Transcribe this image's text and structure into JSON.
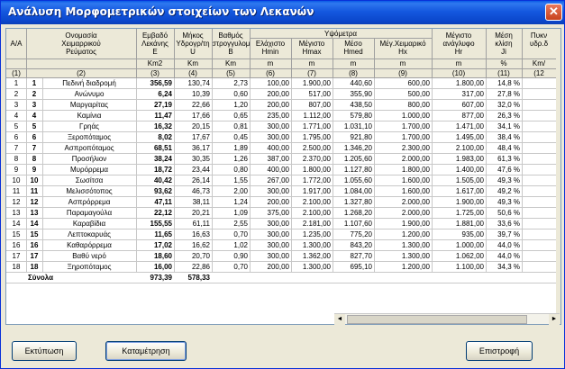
{
  "window": {
    "title": "Ανάλυση Μορφομετρικών στοιχείων των Λεκανών",
    "close_glyph": "✕"
  },
  "table": {
    "header": {
      "aa": "A/A",
      "name": [
        "Ονομασία",
        "Χειμαρρικού",
        "Ρεύματος"
      ],
      "area": [
        "Εμβαδό",
        "Λεκάνης",
        "E"
      ],
      "length": [
        "Μήκος",
        "Υδρογρ/τη",
        "U"
      ],
      "degree": [
        "Βαθμός",
        "στρογγυλομ",
        "B"
      ],
      "altitude_group": "Υψόμετρα",
      "hmin": [
        "Ελάχιστο",
        "Hmin"
      ],
      "hmax": [
        "Μέγιστο",
        "Hmax"
      ],
      "hmed": [
        "Μέσο",
        "Hmed"
      ],
      "hx": [
        "Μέγ.Χειμαρικό",
        "Hx"
      ],
      "hr": [
        "Μέγιστο",
        "ανάγλυφο",
        "Hr"
      ],
      "ji": [
        "Μέση",
        "κλίση",
        "Ji"
      ],
      "extra": [
        "Πυκν",
        "υδρ.δ"
      ],
      "units": [
        "",
        "",
        "Km2",
        "Km",
        "Km",
        "m",
        "m",
        "m",
        "m",
        "m",
        "%",
        "Km/"
      ],
      "numbers": [
        "(1)",
        "(2)",
        "(3)",
        "(4)",
        "(5)",
        "(6)",
        "(7)",
        "(8)",
        "(9)",
        "(10)",
        "(11)",
        "(12"
      ]
    },
    "rows": [
      [
        "1",
        "1",
        "Πεδινή διαδρομή",
        "356,59",
        "130,74",
        "2,73",
        "100,00",
        "1.900,00",
        "440,60",
        "600,00",
        "1.800,00",
        "14,8 %"
      ],
      [
        "2",
        "2",
        "Ανώνυμο",
        "6,24",
        "10,39",
        "0,60",
        "200,00",
        "517,00",
        "355,90",
        "500,00",
        "317,00",
        "27,8 %"
      ],
      [
        "3",
        "3",
        "Μαργαρίτας",
        "27,19",
        "22,66",
        "1,20",
        "200,00",
        "807,00",
        "438,50",
        "800,00",
        "607,00",
        "32,0 %"
      ],
      [
        "4",
        "4",
        "Καμίνια",
        "11,47",
        "17,66",
        "0,65",
        "235,00",
        "1.112,00",
        "579,80",
        "1.000,00",
        "877,00",
        "26,3 %"
      ],
      [
        "5",
        "5",
        "Γρηάς",
        "16,32",
        "20,15",
        "0,81",
        "300,00",
        "1.771,00",
        "1.031,10",
        "1.700,00",
        "1.471,00",
        "34,1 %"
      ],
      [
        "6",
        "6",
        "Ξεροπόταμος",
        "8,02",
        "17,67",
        "0,45",
        "300,00",
        "1.795,00",
        "921,80",
        "1.700,00",
        "1.495,00",
        "38,4 %"
      ],
      [
        "7",
        "7",
        "Ασπροπόταμος",
        "68,51",
        "36,17",
        "1,89",
        "400,00",
        "2.500,00",
        "1.346,20",
        "2.300,00",
        "2.100,00",
        "48,4 %"
      ],
      [
        "8",
        "8",
        "Προσήλιον",
        "38,24",
        "30,35",
        "1,26",
        "387,00",
        "2.370,00",
        "1.205,60",
        "2.000,00",
        "1.983,00",
        "61,3 %"
      ],
      [
        "9",
        "9",
        "Μυρόρρεμα",
        "18,72",
        "23,44",
        "0,80",
        "400,00",
        "1.800,00",
        "1.127,80",
        "1.800,00",
        "1.400,00",
        "47,6 %"
      ],
      [
        "10",
        "10",
        "Σωσίτσα",
        "40,42",
        "26,14",
        "1,55",
        "267,00",
        "1.772,00",
        "1.055,60",
        "1.600,00",
        "1.505,00",
        "49,3 %"
      ],
      [
        "11",
        "11",
        "Μελισσότοπος",
        "93,62",
        "46,73",
        "2,00",
        "300,00",
        "1.917,00",
        "1.084,00",
        "1.600,00",
        "1.617,00",
        "49,2 %"
      ],
      [
        "12",
        "12",
        "Ασπρόρρεμα",
        "47,11",
        "38,11",
        "1,24",
        "200,00",
        "2.100,00",
        "1.327,80",
        "2.000,00",
        "1.900,00",
        "49,3 %"
      ],
      [
        "13",
        "13",
        "Παραμαγούλα",
        "22,12",
        "20,21",
        "1,09",
        "375,00",
        "2.100,00",
        "1.268,20",
        "2.000,00",
        "1.725,00",
        "50,6 %"
      ],
      [
        "14",
        "14",
        "Καραβίδια",
        "155,55",
        "61,11",
        "2,55",
        "300,00",
        "2.181,00",
        "1.107,60",
        "1.900,00",
        "1.881,00",
        "33,6 %"
      ],
      [
        "15",
        "15",
        "Λεπτοκαρυάς",
        "11,65",
        "16,63",
        "0,70",
        "300,00",
        "1.235,00",
        "775,20",
        "1.200,00",
        "935,00",
        "39,7 %"
      ],
      [
        "16",
        "16",
        "Καθαρόρρεμα",
        "17,02",
        "16,62",
        "1,02",
        "300,00",
        "1.300,00",
        "843,20",
        "1.300,00",
        "1.000,00",
        "44,0 %"
      ],
      [
        "17",
        "17",
        "Βαθύ νερό",
        "18,60",
        "20,70",
        "0,90",
        "300,00",
        "1.362,00",
        "827,70",
        "1.300,00",
        "1.062,00",
        "44,0 %"
      ],
      [
        "18",
        "18",
        "Ξηροπόταμος",
        "16,00",
        "22,86",
        "0,70",
        "200,00",
        "1.300,00",
        "695,10",
        "1.200,00",
        "1.100,00",
        "34,3 %"
      ]
    ],
    "totals": {
      "label": "Σύνολα",
      "area": "973,39",
      "length": "578,33"
    }
  },
  "scroll": {
    "left": "◄",
    "right": "►"
  },
  "buttons": {
    "print": "Εκτύπωση",
    "register": "Καταμέτρηση",
    "back": "Επιστροφή"
  }
}
